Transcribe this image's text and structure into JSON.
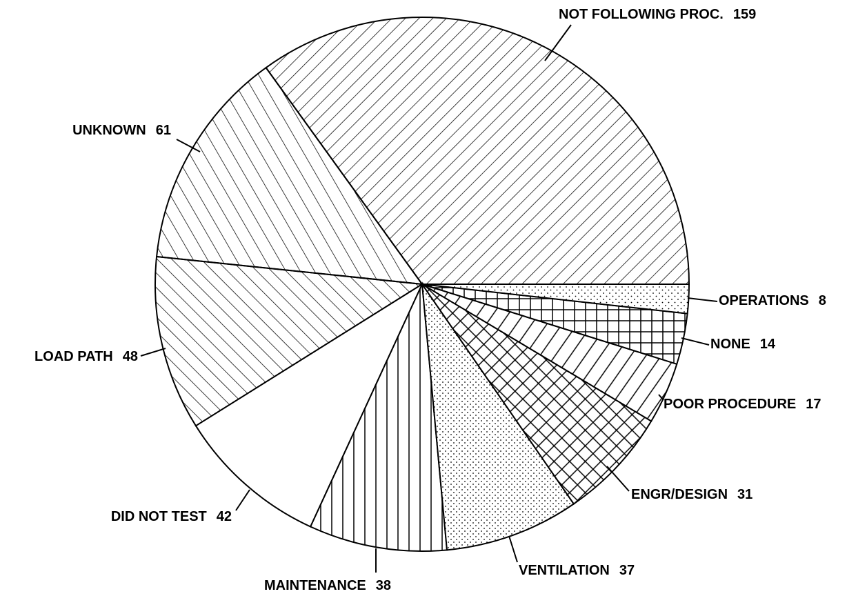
{
  "chart_data": {
    "type": "pie",
    "categories": [
      "NOT FOLLOWING PROC.",
      "UNKNOWN",
      "LOAD PATH",
      "DID NOT TEST",
      "MAINTENANCE",
      "VENTILATION",
      "ENGR/DESIGN",
      "POOR PROCEDURE",
      "NONE",
      "OPERATIONS"
    ],
    "values": [
      159,
      61,
      48,
      42,
      38,
      37,
      31,
      17,
      14,
      8
    ]
  }
}
